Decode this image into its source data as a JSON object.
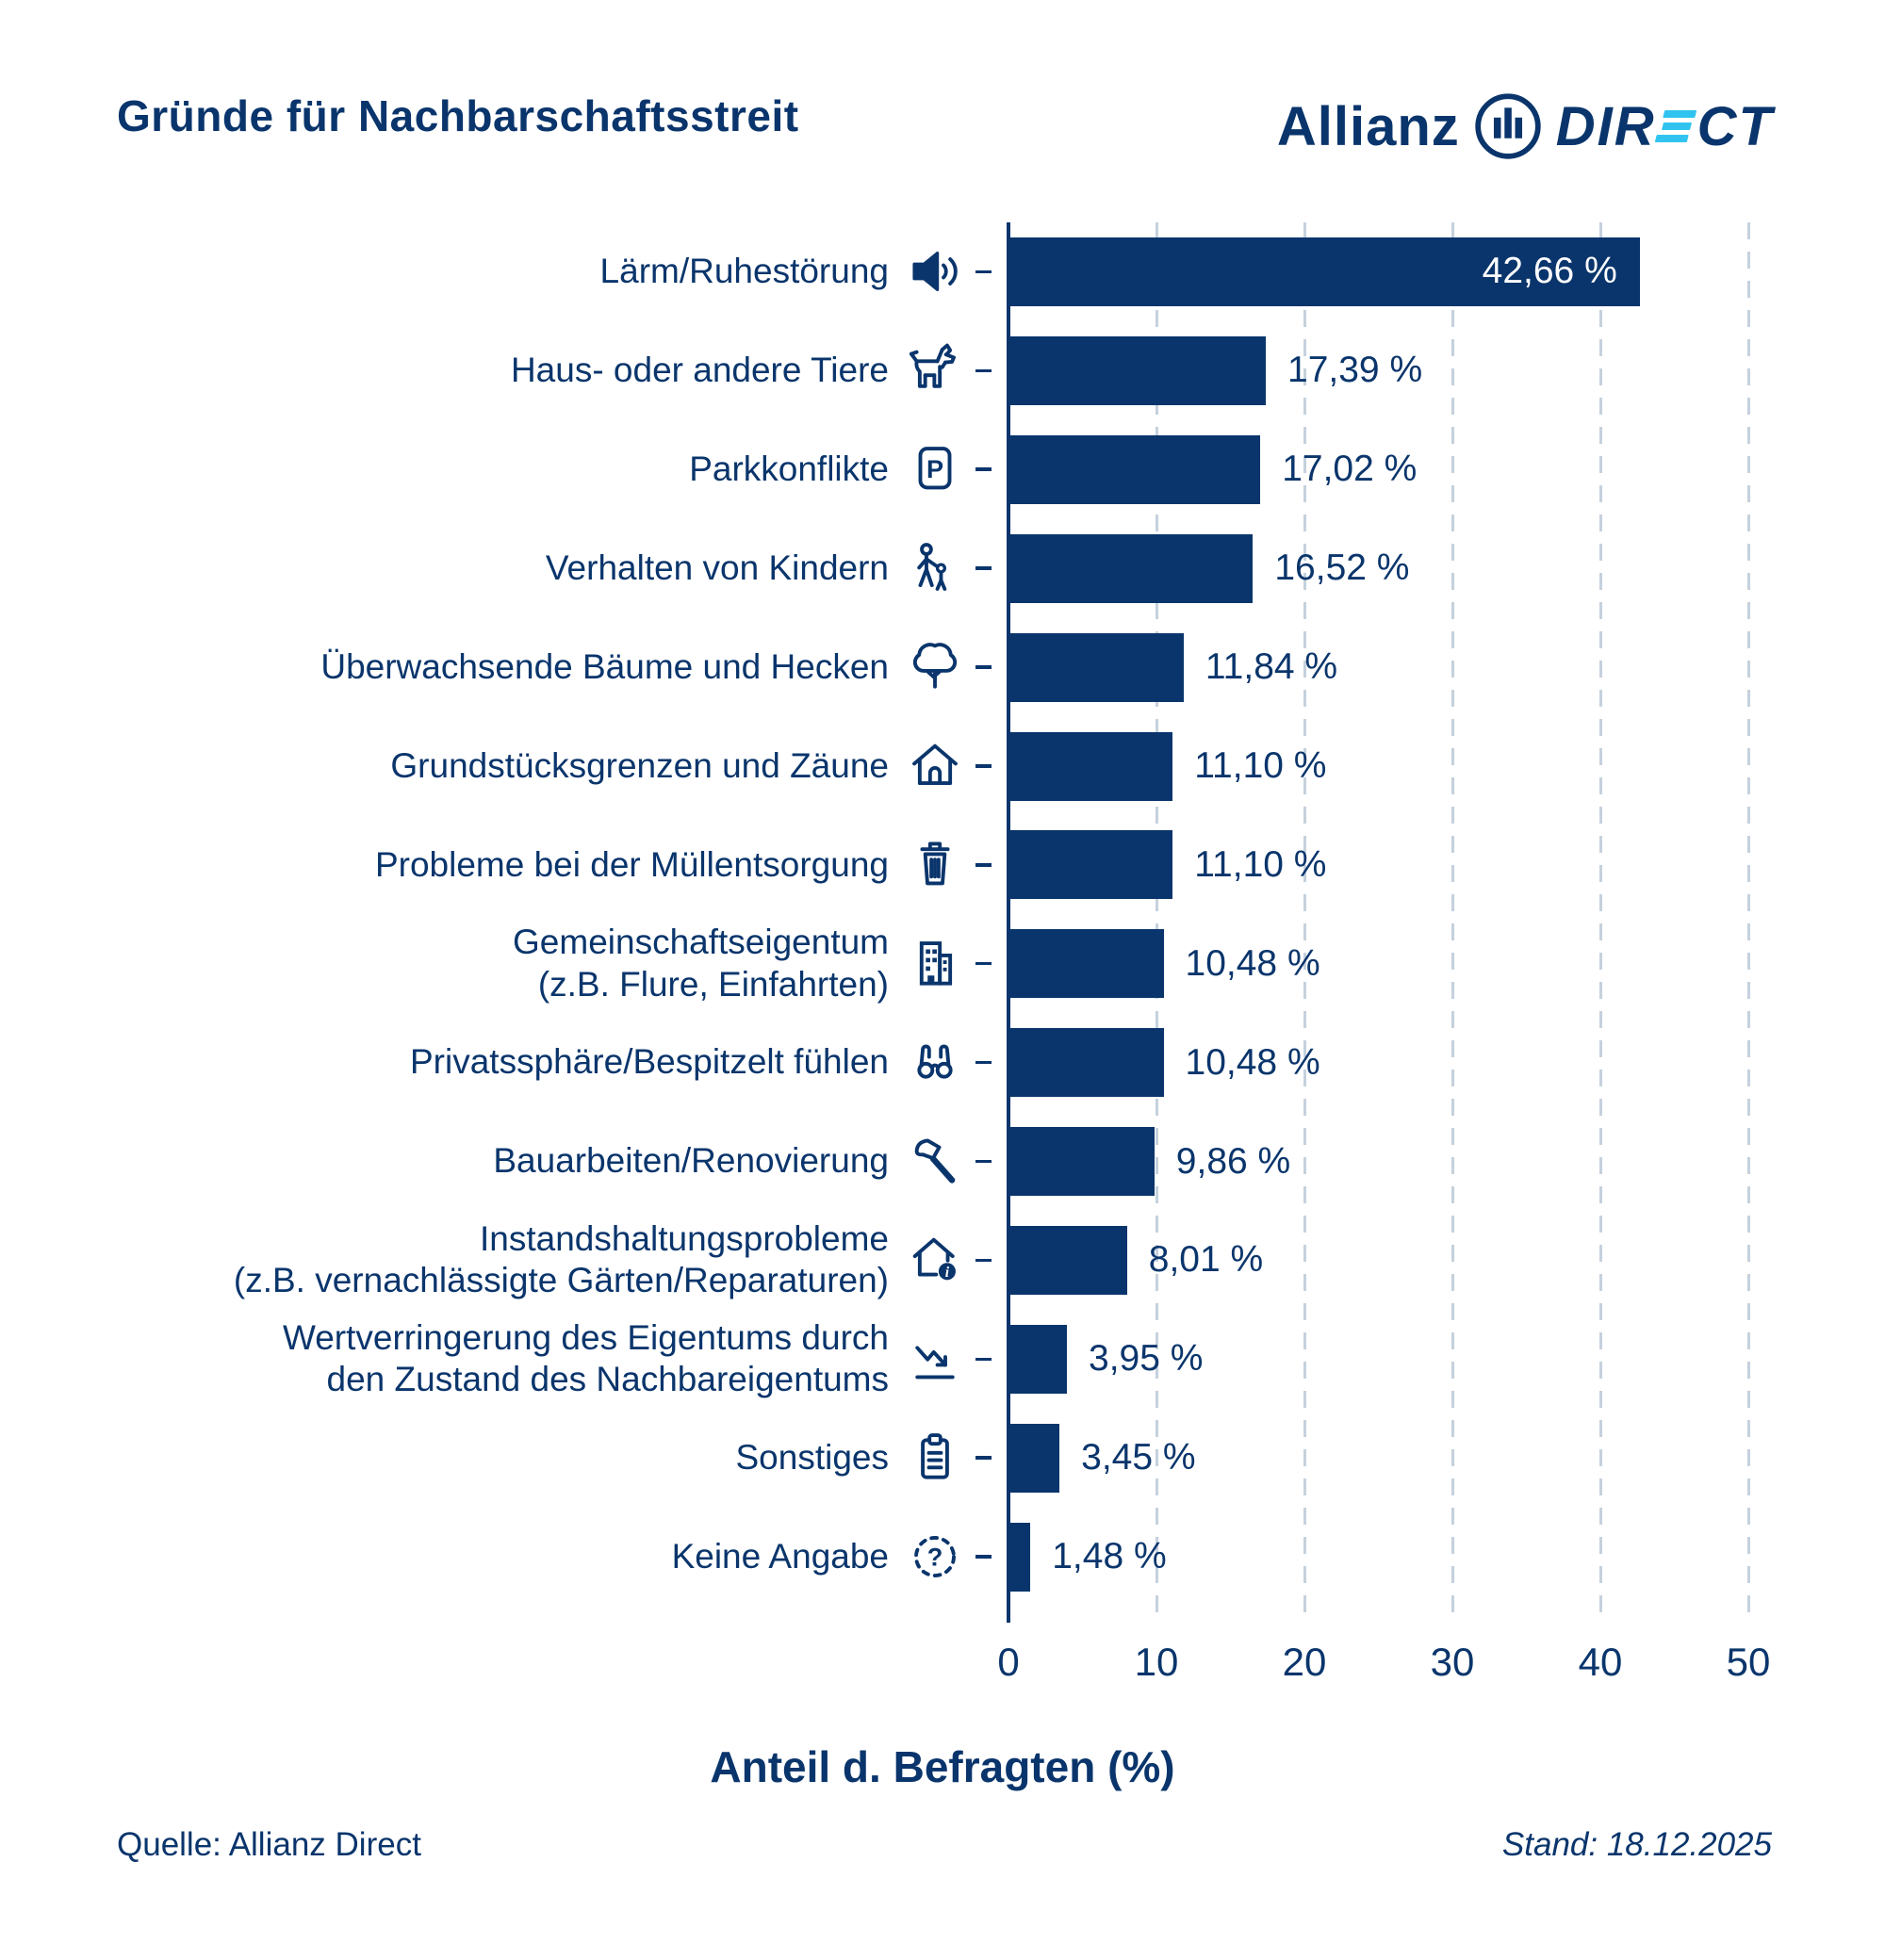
{
  "title": "Gründe für Nachbarschaftsstreit",
  "logo": {
    "allianz": "Allianz",
    "direct_prefix": "DIR",
    "direct_suffix": "CT",
    "cyan": "#31C3F0",
    "navy": "#0A356C"
  },
  "chart_data": {
    "type": "bar",
    "orientation": "horizontal",
    "title": "Gründe für Nachbarschaftsstreit",
    "xlabel": "Anteil d. Befragten (%)",
    "ylabel": "",
    "xlim": [
      0,
      52.9
    ],
    "xticks": [
      0,
      10,
      20,
      30,
      40,
      50
    ],
    "grid": true,
    "gridline_color": "#C5D1DD",
    "bar_color": "#0A356C",
    "inside_label_color": "#FFFFFF",
    "categories": [
      "Lärm/Ruhestörung",
      "Haus- oder andere Tiere",
      "Parkkonflikte",
      "Verhalten von Kindern",
      "Überwachsende Bäume und Hecken",
      "Grundstücksgrenzen und Zäune",
      "Probleme bei der Müllentsorgung",
      "Gemeinschaftseigentum (z.B. Flure, Einfahrten)",
      "Privatssphäre/Bespitzelt fühlen",
      "Bauarbeiten/Renovierung",
      "Instandshaltungsprobleme (z.B. vernachlässigte Gärten/Reparaturen)",
      "Wertverringerung des Eigentums durch den Zustand des Nachbareigentums",
      "Sonstiges",
      "Keine Angabe"
    ],
    "values": [
      42.66,
      17.39,
      17.02,
      16.52,
      11.84,
      11.1,
      11.1,
      10.48,
      10.48,
      9.86,
      8.01,
      3.95,
      3.45,
      1.48
    ],
    "rows": [
      {
        "label": [
          "Lärm/Ruhestörung"
        ],
        "value": 42.66,
        "display": "42,66 %",
        "icon": "speaker",
        "label_inside": true
      },
      {
        "label": [
          "Haus- oder andere Tiere"
        ],
        "value": 17.39,
        "display": "17,39 %",
        "icon": "dog",
        "label_inside": false
      },
      {
        "label": [
          "Parkkonflikte"
        ],
        "value": 17.02,
        "display": "17,02 %",
        "icon": "parking",
        "label_inside": false
      },
      {
        "label": [
          "Verhalten von Kindern"
        ],
        "value": 16.52,
        "display": "16,52 %",
        "icon": "children",
        "label_inside": false
      },
      {
        "label": [
          "Überwachsende Bäume und Hecken"
        ],
        "value": 11.84,
        "display": "11,84 %",
        "icon": "tree",
        "label_inside": false
      },
      {
        "label": [
          "Grundstücksgrenzen und Zäune"
        ],
        "value": 11.1,
        "display": "11,10 %",
        "icon": "house",
        "label_inside": false
      },
      {
        "label": [
          "Probleme bei der Müllentsorgung"
        ],
        "value": 11.1,
        "display": "11,10 %",
        "icon": "trash",
        "label_inside": false
      },
      {
        "label": [
          "Gemeinschaftseigentum",
          "(z.B. Flure, Einfahrten)"
        ],
        "value": 10.48,
        "display": "10,48 %",
        "icon": "building",
        "label_inside": false
      },
      {
        "label": [
          "Privatssphäre/Bespitzelt fühlen"
        ],
        "value": 10.48,
        "display": "10,48 %",
        "icon": "binoculars",
        "label_inside": false
      },
      {
        "label": [
          "Bauarbeiten/Renovierung"
        ],
        "value": 9.86,
        "display": "9,86 %",
        "icon": "hammer",
        "label_inside": false
      },
      {
        "label": [
          "Instandshaltungsprobleme",
          "(z.B. vernachlässigte Gärten/Reparaturen)"
        ],
        "value": 8.01,
        "display": "8,01 %",
        "icon": "house-alert",
        "label_inside": false
      },
      {
        "label": [
          "Wertverringerung des Eigentums durch",
          "den Zustand des Nachbareigentums"
        ],
        "value": 3.95,
        "display": "3,95 %",
        "icon": "chart-decline",
        "label_inside": false
      },
      {
        "label": [
          "Sonstiges"
        ],
        "value": 3.45,
        "display": "3,45 %",
        "icon": "clipboard",
        "label_inside": false
      },
      {
        "label": [
          "Keine Angabe"
        ],
        "value": 1.48,
        "display": "1,48 %",
        "icon": "question",
        "label_inside": false
      }
    ],
    "icon_glyphs": {
      "parking": "P",
      "question": "?",
      "house-alert": "i"
    }
  },
  "footer": {
    "source": "Quelle: Allianz Direct",
    "stand": "Stand: 18.12.2025"
  }
}
